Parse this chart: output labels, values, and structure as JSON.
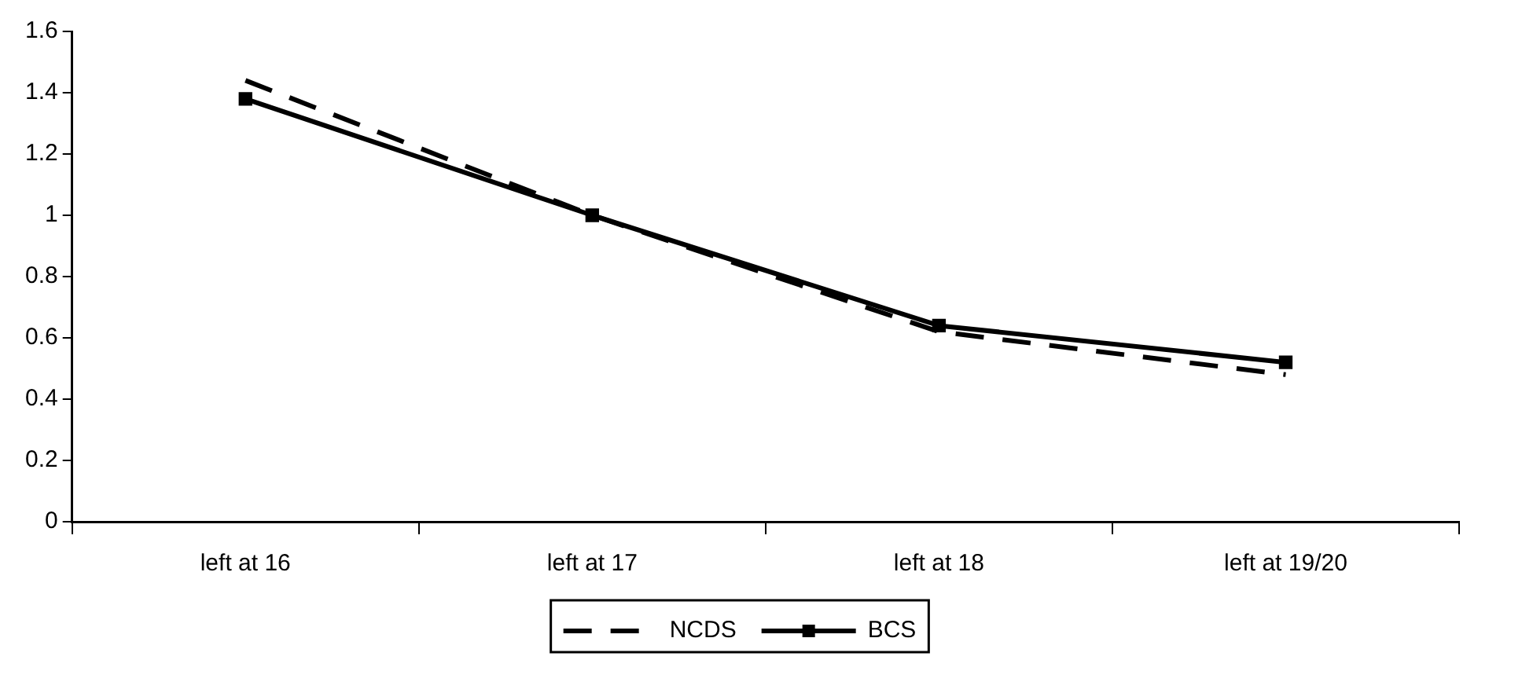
{
  "chart_data": {
    "type": "line",
    "categories": [
      "left at 16",
      "left at 17",
      "left at 18",
      "left at 19/20"
    ],
    "series": [
      {
        "name": "NCDS",
        "color": "#000000",
        "values": [
          1.44,
          1.0,
          0.62,
          0.48
        ],
        "line_style": "dashed",
        "marker": "none"
      },
      {
        "name": "BCS",
        "color": "#000000",
        "values": [
          1.38,
          1.0,
          0.64,
          0.52
        ],
        "line_style": "solid",
        "marker": "square"
      }
    ],
    "ylim": [
      0,
      1.6
    ],
    "yticks": [
      0,
      0.2,
      0.4,
      0.6,
      0.8,
      1,
      1.2,
      1.4,
      1.6
    ],
    "grid": false,
    "legend": "bottom"
  }
}
